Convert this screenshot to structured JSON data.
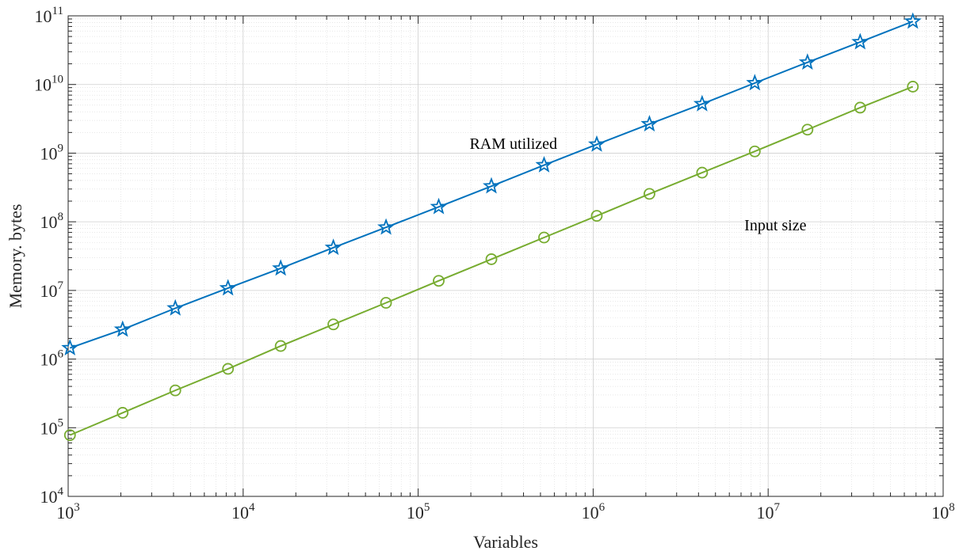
{
  "chart_data": {
    "type": "line",
    "xscale": "log",
    "yscale": "log",
    "xlim": [
      1000,
      100000000
    ],
    "ylim": [
      10000,
      100000000000
    ],
    "grid": true,
    "minor_grid": true,
    "xlabel": "Variables",
    "ylabel": "Memory. bytes",
    "x_ticks": [
      {
        "base": "10",
        "exp": "3"
      },
      {
        "base": "10",
        "exp": "4"
      },
      {
        "base": "10",
        "exp": "5"
      },
      {
        "base": "10",
        "exp": "6"
      },
      {
        "base": "10",
        "exp": "7"
      },
      {
        "base": "10",
        "exp": "8"
      }
    ],
    "y_ticks": [
      {
        "base": "10",
        "exp": "4"
      },
      {
        "base": "10",
        "exp": "5"
      },
      {
        "base": "10",
        "exp": "6"
      },
      {
        "base": "10",
        "exp": "7"
      },
      {
        "base": "10",
        "exp": "8"
      },
      {
        "base": "10",
        "exp": "9"
      },
      {
        "base": "10",
        "exp": "10"
      },
      {
        "base": "10",
        "exp": "11"
      }
    ],
    "x": [
      1024,
      2048,
      4096,
      8192,
      16384,
      32768,
      65536,
      131072,
      262144,
      524288,
      1048576,
      2097152,
      4194304,
      8388608,
      16777216,
      33554432,
      67108864
    ],
    "series": [
      {
        "name": "RAM utilized",
        "color": "#0072BD",
        "marker": "star",
        "values": [
          1450000,
          2700000,
          5500000,
          10800000,
          21000000,
          42000000,
          83000000,
          165000000,
          330000000,
          670000000,
          1340000000,
          2650000000,
          5200000000,
          10500000000,
          21000000000,
          41500000000,
          83000000000
        ]
      },
      {
        "name": "Input size",
        "color": "#77AC30",
        "marker": "circle",
        "values": [
          78000,
          165000,
          350000,
          720000,
          1550000,
          3200000,
          6600000,
          13800000,
          28500000,
          59000000,
          122000000,
          255000000,
          520000000,
          1060000000,
          2200000000,
          4600000000,
          9300000000
        ]
      }
    ],
    "annotations": [
      {
        "text": "RAM utilized",
        "x": 350000,
        "y": 1150000000
      },
      {
        "text": "Input size",
        "x": 11000000,
        "y": 75000000
      }
    ]
  }
}
